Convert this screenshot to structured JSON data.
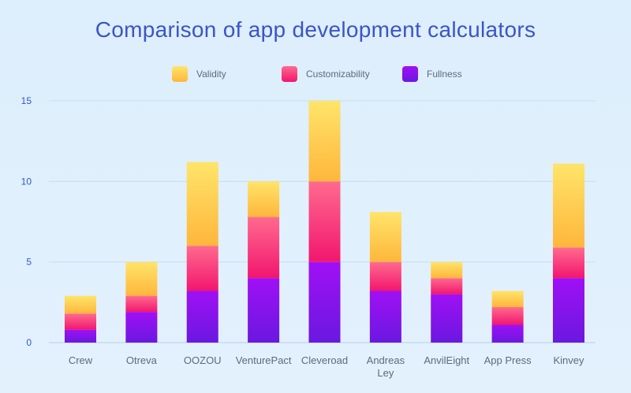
{
  "chart_data": {
    "type": "bar",
    "stacked": true,
    "title": "Comparison of app development calculators",
    "categories": [
      "Crew",
      "Otreva",
      "OOZOU",
      "VenturePact",
      "Cleveroad",
      "Andreas Ley",
      "AnvilEight",
      "App Press",
      "Kinvey"
    ],
    "series": [
      {
        "name": "Fullness",
        "values": [
          0.8,
          1.9,
          3.2,
          4.0,
          5.0,
          3.2,
          3.0,
          1.1,
          4.0
        ],
        "color_top": "#a010f5",
        "color_bottom": "#6a18e0"
      },
      {
        "name": "Customizability",
        "values": [
          1.0,
          1.0,
          2.8,
          3.8,
          5.0,
          1.8,
          1.0,
          1.1,
          1.9
        ],
        "color_top": "#ff6a8e",
        "color_bottom": "#f2166f"
      },
      {
        "name": "Validity",
        "values": [
          1.1,
          2.1,
          5.2,
          2.2,
          5.0,
          3.1,
          1.0,
          1.0,
          5.2
        ],
        "color_top": "#ffe46a",
        "color_bottom": "#ffb63c"
      }
    ],
    "legend_order": [
      "Validity",
      "Customizability",
      "Fullness"
    ],
    "legend_position": "top-center",
    "ylim": [
      0,
      15
    ],
    "yticks": [
      0,
      5,
      10,
      15
    ],
    "grid": true,
    "xlabel": "",
    "ylabel": ""
  }
}
